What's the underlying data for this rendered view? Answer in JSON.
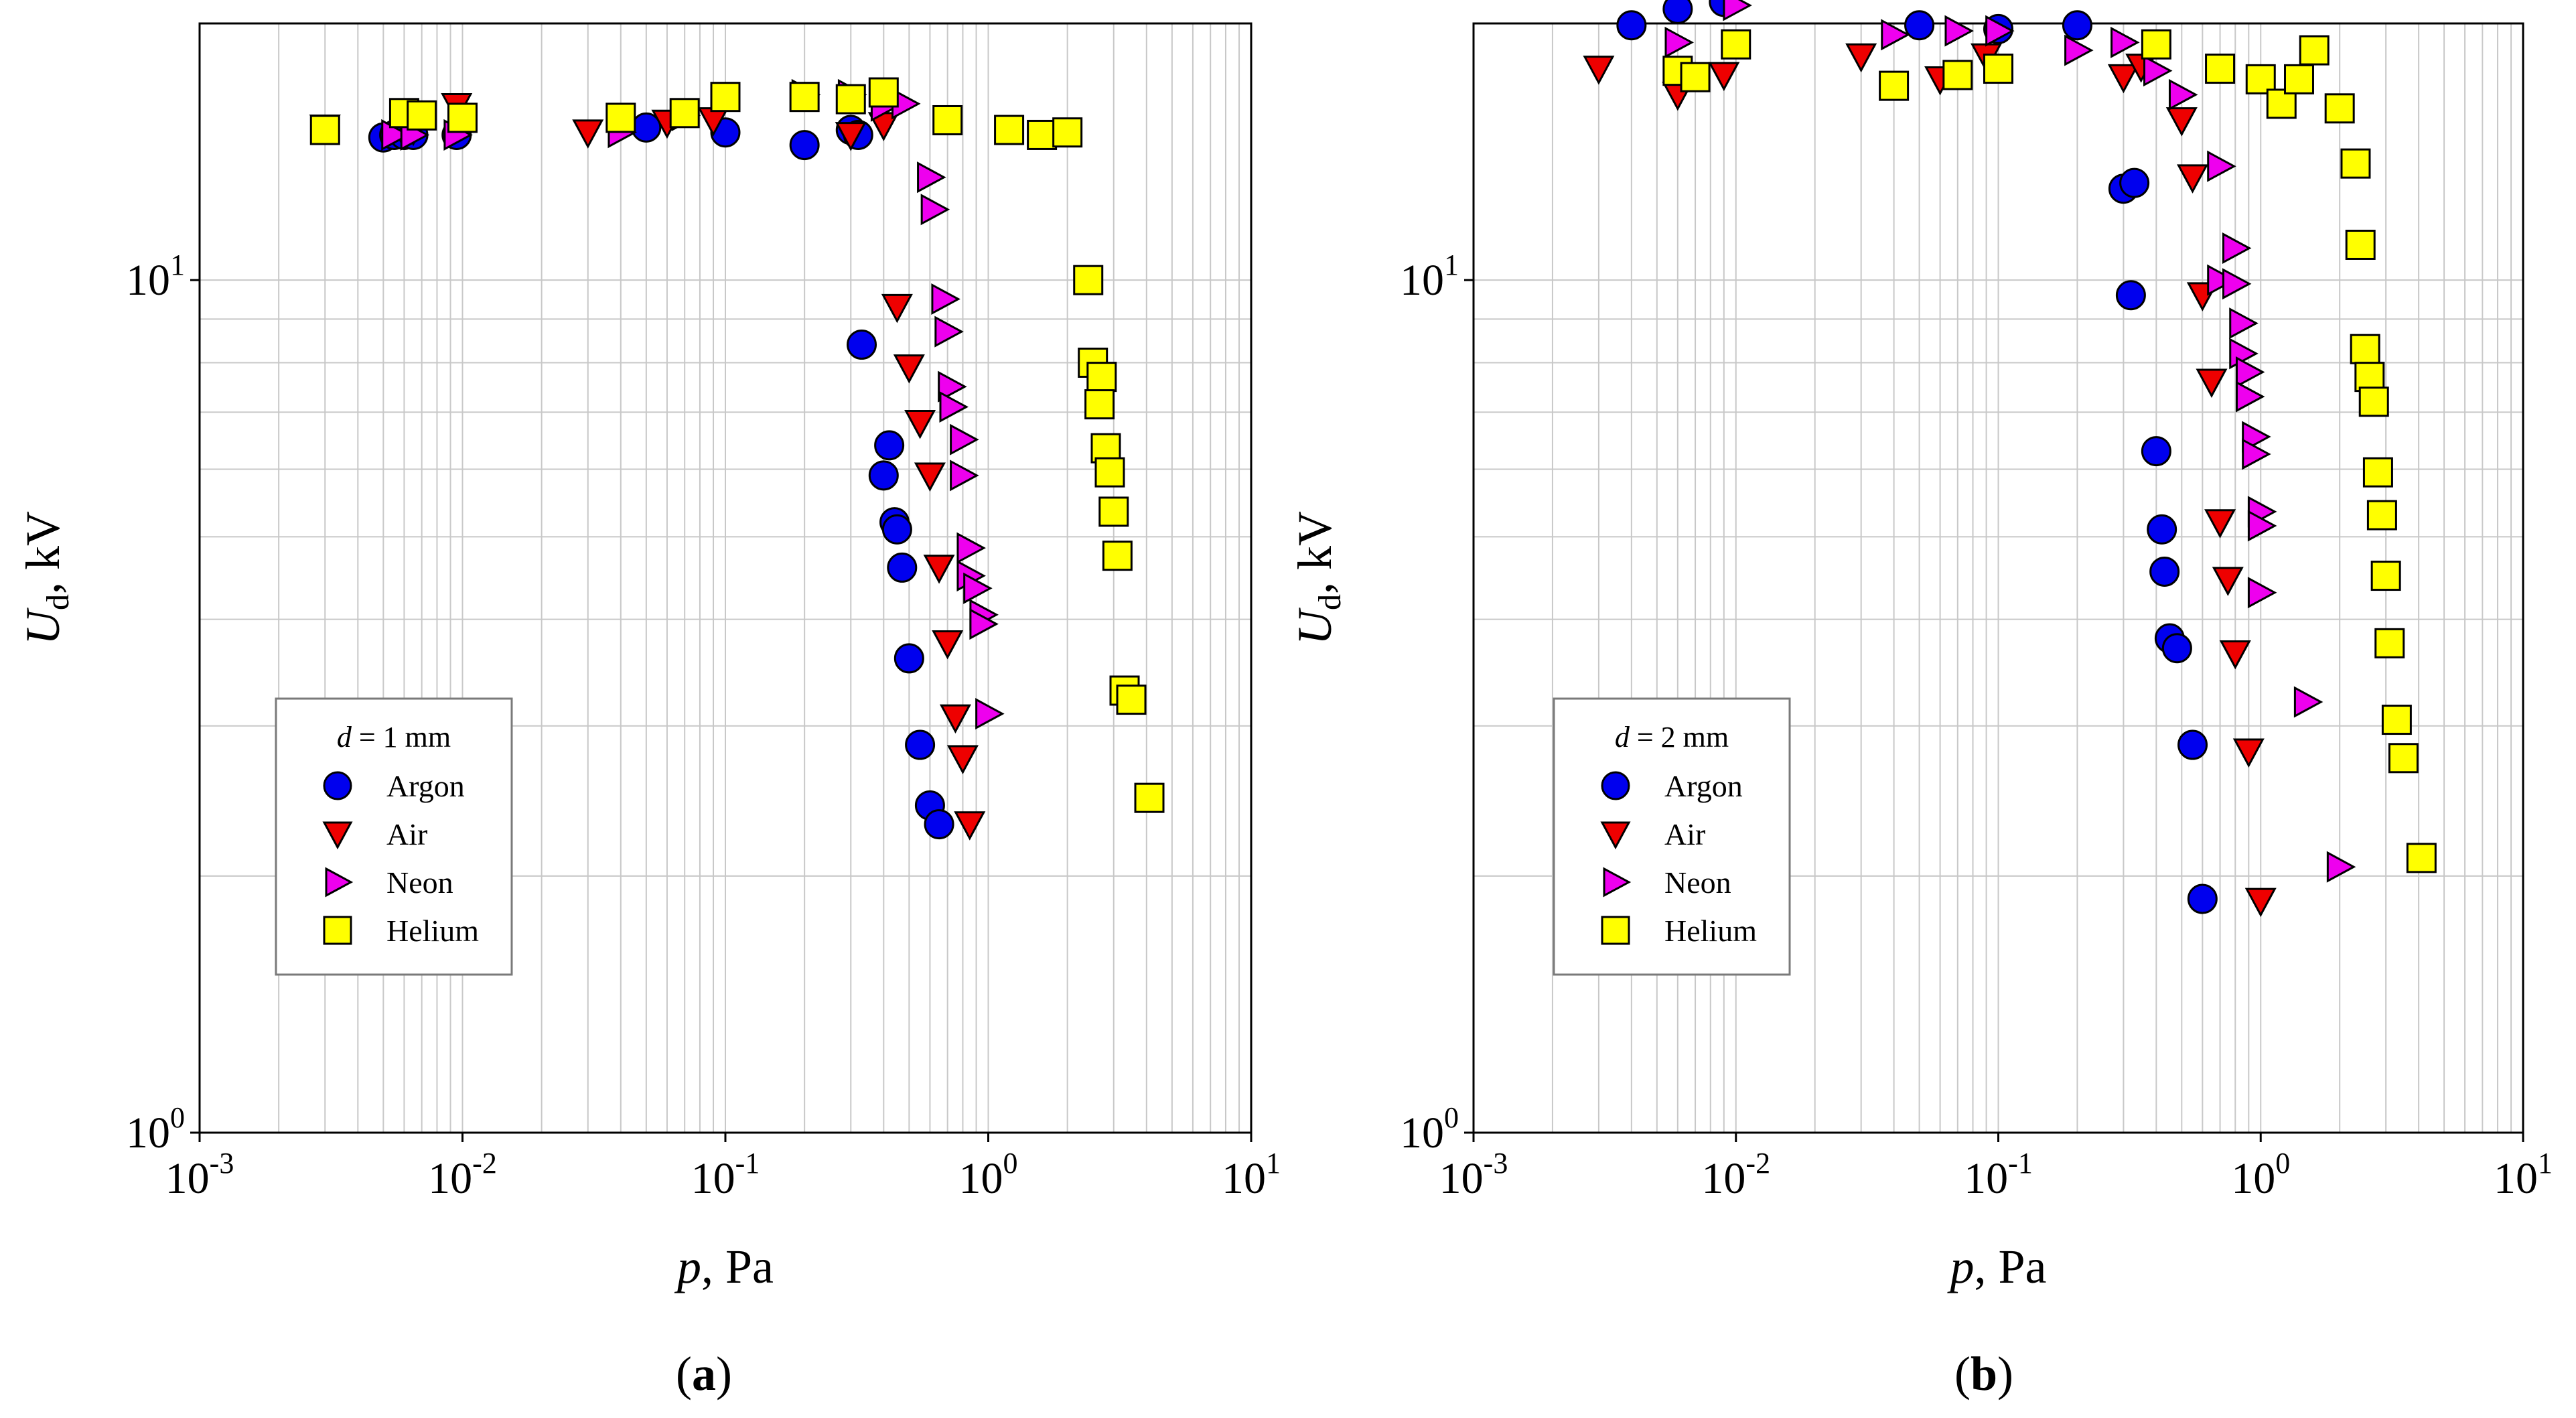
{
  "chart_data": [
    {
      "type": "scatter",
      "caption": "(a)",
      "caption_letter": "a",
      "xscale": "log",
      "yscale": "log",
      "xlabel": "p",
      "xlabel_unit": ", Pa",
      "ylabel": "U",
      "ylabel_sub": "d",
      "ylabel_unit": ", kV",
      "xlim": [
        0.001,
        10
      ],
      "ylim": [
        1,
        20
      ],
      "grid": true,
      "x_ticks": [
        {
          "value": 0.001,
          "base": "10",
          "exp": "-3"
        },
        {
          "value": 0.01,
          "base": "10",
          "exp": "-2"
        },
        {
          "value": 0.1,
          "base": "10",
          "exp": "-1"
        },
        {
          "value": 1,
          "base": "10",
          "exp": "0"
        },
        {
          "value": 10,
          "base": "10",
          "exp": "1"
        }
      ],
      "y_ticks": [
        {
          "value": 1,
          "base": "10",
          "exp": "0"
        },
        {
          "value": 10,
          "base": "10",
          "exp": "1"
        }
      ],
      "legend": {
        "title_var": "d",
        "title_rest": " = 1 mm",
        "position": "bottom-left"
      },
      "series": [
        {
          "name": "Argon",
          "marker": "circle",
          "color": "#0000ee",
          "points": [
            [
              0.005,
              14.7
            ],
            [
              0.0055,
              14.8
            ],
            [
              0.006,
              14.8
            ],
            [
              0.0065,
              14.8
            ],
            [
              0.0095,
              14.8
            ],
            [
              0.05,
              15.1
            ],
            [
              0.1,
              14.9
            ],
            [
              0.2,
              14.4
            ],
            [
              0.3,
              15.0
            ],
            [
              0.32,
              14.8
            ],
            [
              0.33,
              8.4
            ],
            [
              0.42,
              6.4
            ],
            [
              0.4,
              5.9
            ],
            [
              0.44,
              5.2
            ],
            [
              0.45,
              5.1
            ],
            [
              0.47,
              4.6
            ],
            [
              0.5,
              3.6
            ],
            [
              0.55,
              2.85
            ],
            [
              0.6,
              2.42
            ],
            [
              0.65,
              2.3
            ]
          ]
        },
        {
          "name": "Air",
          "marker": "triangle-down",
          "color": "#ee0000",
          "points": [
            [
              0.003,
              15.1
            ],
            [
              0.0065,
              15.0
            ],
            [
              0.0095,
              16.0
            ],
            [
              0.03,
              14.9
            ],
            [
              0.06,
              15.3
            ],
            [
              0.09,
              15.4
            ],
            [
              0.3,
              14.8
            ],
            [
              0.4,
              15.2
            ],
            [
              0.45,
              9.3
            ],
            [
              0.5,
              7.9
            ],
            [
              0.55,
              6.8
            ],
            [
              0.6,
              5.9
            ],
            [
              0.65,
              4.6
            ],
            [
              0.7,
              3.75
            ],
            [
              0.75,
              3.07
            ],
            [
              0.8,
              2.75
            ],
            [
              0.85,
              2.3
            ]
          ]
        },
        {
          "name": "Neon",
          "marker": "triangle-right",
          "color": "#ee00ee",
          "points": [
            [
              0.0055,
              14.8
            ],
            [
              0.0065,
              14.8
            ],
            [
              0.0095,
              14.8
            ],
            [
              0.04,
              14.9
            ],
            [
              0.07,
              15.6
            ],
            [
              0.2,
              16.5
            ],
            [
              0.3,
              16.5
            ],
            [
              0.4,
              16.0
            ],
            [
              0.48,
              16.1
            ],
            [
              0.6,
              13.2
            ],
            [
              0.62,
              12.1
            ],
            [
              0.68,
              9.5
            ],
            [
              0.7,
              8.7
            ],
            [
              0.72,
              7.5
            ],
            [
              0.73,
              7.1
            ],
            [
              0.8,
              6.5
            ],
            [
              0.8,
              5.9
            ],
            [
              0.85,
              4.85
            ],
            [
              0.85,
              4.5
            ],
            [
              0.9,
              4.35
            ],
            [
              0.95,
              4.05
            ],
            [
              0.95,
              3.95
            ],
            [
              1.0,
              3.1
            ]
          ]
        },
        {
          "name": "Helium",
          "marker": "square",
          "color": "#ffff00",
          "points": [
            [
              0.003,
              15.0
            ],
            [
              0.006,
              15.7
            ],
            [
              0.007,
              15.6
            ],
            [
              0.01,
              15.5
            ],
            [
              0.04,
              15.5
            ],
            [
              0.07,
              15.7
            ],
            [
              0.1,
              16.4
            ],
            [
              0.2,
              16.4
            ],
            [
              0.3,
              16.3
            ],
            [
              0.4,
              16.6
            ],
            [
              0.7,
              15.4
            ],
            [
              1.2,
              15.0
            ],
            [
              1.6,
              14.8
            ],
            [
              2.0,
              14.9
            ],
            [
              2.4,
              10.0
            ],
            [
              2.5,
              8.0
            ],
            [
              2.7,
              7.7
            ],
            [
              2.65,
              7.15
            ],
            [
              2.8,
              6.35
            ],
            [
              2.9,
              5.95
            ],
            [
              3.0,
              5.35
            ],
            [
              3.1,
              4.75
            ],
            [
              3.3,
              3.3
            ],
            [
              3.5,
              3.22
            ],
            [
              4.1,
              2.47
            ]
          ]
        }
      ]
    },
    {
      "type": "scatter",
      "caption": "(b)",
      "caption_letter": "b",
      "xscale": "log",
      "yscale": "log",
      "xlabel": "p",
      "xlabel_unit": ", Pa",
      "ylabel": "U",
      "ylabel_sub": "d",
      "ylabel_unit": ", kV",
      "xlim": [
        0.001,
        10
      ],
      "ylim": [
        1,
        20
      ],
      "grid": true,
      "x_ticks": [
        {
          "value": 0.001,
          "base": "10",
          "exp": "-3"
        },
        {
          "value": 0.01,
          "base": "10",
          "exp": "-2"
        },
        {
          "value": 0.1,
          "base": "10",
          "exp": "-1"
        },
        {
          "value": 1,
          "base": "10",
          "exp": "0"
        },
        {
          "value": 10,
          "base": "10",
          "exp": "1"
        }
      ],
      "y_ticks": [
        {
          "value": 1,
          "base": "10",
          "exp": "0"
        },
        {
          "value": 10,
          "base": "10",
          "exp": "1"
        }
      ],
      "legend": {
        "title_var": "d",
        "title_rest": " = 2 mm",
        "position": "bottom-left"
      },
      "series": [
        {
          "name": "Argon",
          "marker": "circle",
          "color": "#0000ee",
          "points": [
            [
              0.004,
              19.9
            ],
            [
              0.006,
              20.8
            ],
            [
              0.009,
              21.2
            ],
            [
              0.05,
              19.9
            ],
            [
              0.1,
              19.7
            ],
            [
              0.2,
              19.9
            ],
            [
              0.3,
              12.8
            ],
            [
              0.33,
              13.0
            ],
            [
              0.32,
              9.6
            ],
            [
              0.4,
              6.3
            ],
            [
              0.42,
              5.1
            ],
            [
              0.43,
              4.55
            ],
            [
              0.45,
              3.8
            ],
            [
              0.48,
              3.7
            ],
            [
              0.55,
              2.85
            ],
            [
              0.6,
              1.88
            ]
          ]
        },
        {
          "name": "Air",
          "marker": "triangle-down",
          "color": "#ee0000",
          "points": [
            [
              0.003,
              17.7
            ],
            [
              0.006,
              16.5
            ],
            [
              0.009,
              17.4
            ],
            [
              0.03,
              18.3
            ],
            [
              0.06,
              17.2
            ],
            [
              0.09,
              18.3
            ],
            [
              0.3,
              17.3
            ],
            [
              0.35,
              17.8
            ],
            [
              0.5,
              15.4
            ],
            [
              0.55,
              13.2
            ],
            [
              0.6,
              9.6
            ],
            [
              0.65,
              7.6
            ],
            [
              0.7,
              5.2
            ],
            [
              0.75,
              4.45
            ],
            [
              0.8,
              3.65
            ],
            [
              0.9,
              2.8
            ],
            [
              1.0,
              1.87
            ]
          ]
        },
        {
          "name": "Neon",
          "marker": "triangle-right",
          "color": "#ee00ee",
          "points": [
            [
              0.006,
              19.0
            ],
            [
              0.01,
              21.0
            ],
            [
              0.04,
              19.4
            ],
            [
              0.07,
              19.6
            ],
            [
              0.1,
              19.6
            ],
            [
              0.2,
              18.6
            ],
            [
              0.3,
              19.0
            ],
            [
              0.4,
              17.6
            ],
            [
              0.5,
              16.5
            ],
            [
              0.7,
              13.6
            ],
            [
              0.8,
              10.9
            ],
            [
              0.7,
              10.0
            ],
            [
              0.8,
              9.9
            ],
            [
              0.85,
              8.9
            ],
            [
              0.85,
              8.2
            ],
            [
              0.9,
              7.8
            ],
            [
              0.9,
              7.3
            ],
            [
              0.95,
              6.55
            ],
            [
              0.95,
              6.25
            ],
            [
              1.0,
              5.35
            ],
            [
              1.0,
              5.15
            ],
            [
              1.0,
              4.3
            ],
            [
              1.5,
              3.2
            ],
            [
              2.0,
              2.05
            ]
          ]
        },
        {
          "name": "Helium",
          "marker": "square",
          "color": "#ffff00",
          "points": [
            [
              0.006,
              17.6
            ],
            [
              0.007,
              17.3
            ],
            [
              0.01,
              18.9
            ],
            [
              0.04,
              16.9
            ],
            [
              0.07,
              17.4
            ],
            [
              0.1,
              17.7
            ],
            [
              0.4,
              18.9
            ],
            [
              0.7,
              17.7
            ],
            [
              1.0,
              17.2
            ],
            [
              1.2,
              16.1
            ],
            [
              1.4,
              17.2
            ],
            [
              1.6,
              18.6
            ],
            [
              2.0,
              15.9
            ],
            [
              2.3,
              13.7
            ],
            [
              2.4,
              11.0
            ],
            [
              2.5,
              8.3
            ],
            [
              2.6,
              7.7
            ],
            [
              2.7,
              7.2
            ],
            [
              2.8,
              5.95
            ],
            [
              2.9,
              5.3
            ],
            [
              3.0,
              4.5
            ],
            [
              3.1,
              3.75
            ],
            [
              3.3,
              3.05
            ],
            [
              3.5,
              2.75
            ],
            [
              4.1,
              2.1
            ]
          ]
        }
      ]
    }
  ]
}
